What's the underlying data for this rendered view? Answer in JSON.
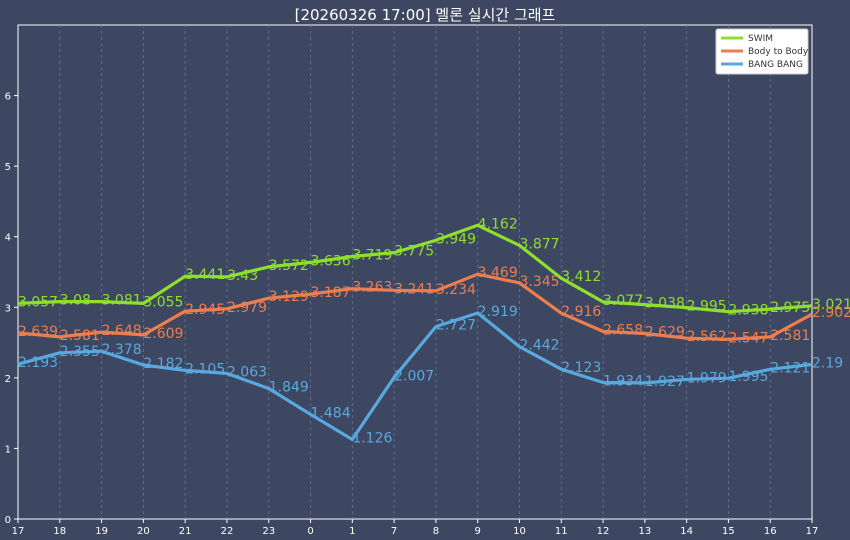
{
  "chart_data": {
    "type": "line",
    "title": "[20260326 17:00] 멜론 실시간 그래프",
    "x": [
      "17",
      "18",
      "19",
      "20",
      "21",
      "22",
      "23",
      "0",
      "1",
      "7",
      "8",
      "9",
      "10",
      "11",
      "12",
      "13",
      "14",
      "15",
      "16",
      "17"
    ],
    "ylim": [
      0,
      7
    ],
    "yticks": [
      0,
      1,
      2,
      3,
      4,
      5,
      6
    ],
    "grid": true,
    "legend_position": "top-right",
    "series": [
      {
        "name": "SWIM",
        "color": "#8ee02c",
        "values": [
          3.057,
          3.08,
          3.081,
          3.055,
          3.441,
          3.43,
          3.572,
          3.636,
          3.719,
          3.775,
          3.949,
          4.162,
          3.877,
          3.412,
          3.077,
          3.038,
          2.995,
          2.938,
          2.975,
          3.021
        ],
        "labels": [
          "3.057",
          "3.08",
          "3.081",
          "3.055",
          "3.441",
          "3.43",
          "3.572",
          "3.636",
          "3.719",
          "3.775",
          "3.949",
          "4.162",
          "3.877",
          "3.412",
          "3.077",
          "3.038",
          "2.995",
          "2.938",
          "2.975",
          "3.021"
        ]
      },
      {
        "name": "Body to Body",
        "color": "#ec7e4f",
        "values": [
          2.639,
          2.581,
          2.648,
          2.609,
          2.945,
          2.979,
          3.129,
          3.187,
          3.263,
          3.241,
          3.234,
          3.469,
          3.345,
          2.916,
          2.658,
          2.629,
          2.562,
          2.547,
          2.581,
          2.902
        ],
        "labels": [
          "2.639",
          "2.581",
          "2.648",
          "2.609",
          "2.945",
          "2.979",
          "3.129",
          "3.187",
          "3.263",
          "3.241",
          "3.234",
          "3.469",
          "3.345",
          "2.916",
          "2.658",
          "2.629",
          "2.562",
          "2.547",
          "2.581",
          "2.902"
        ]
      },
      {
        "name": "BANG BANG",
        "color": "#58a9e0",
        "values": [
          2.193,
          2.355,
          2.378,
          2.182,
          2.105,
          2.063,
          1.849,
          1.484,
          1.126,
          2.007,
          2.727,
          2.919,
          2.442,
          2.123,
          1.934,
          1.927,
          1.979,
          1.995,
          2.121,
          2.19
        ],
        "labels": [
          "2.193",
          "2.355",
          "2.378",
          "2.182",
          "2.105",
          "2.063",
          "1.849",
          "1.484",
          "1.126",
          "2.007",
          "2.727",
          "2.919",
          "2.442",
          "2.123",
          "1.934",
          "1.927",
          "1.979",
          "1.995",
          "2.121",
          "2.19"
        ]
      }
    ]
  }
}
